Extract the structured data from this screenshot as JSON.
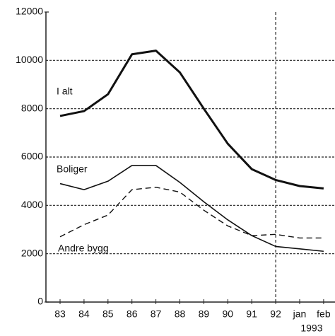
{
  "chart_data": {
    "type": "line",
    "categories": [
      "83",
      "84",
      "85",
      "86",
      "87",
      "88",
      "89",
      "90",
      "91",
      "92",
      "jan",
      "feb"
    ],
    "x_group_label": "1993",
    "vline_category": "92",
    "series": [
      {
        "name": "I alt",
        "color": "#111111",
        "width": 3,
        "dashed": false,
        "values": [
          7700,
          7900,
          8600,
          10250,
          10400,
          9500,
          8000,
          6550,
          5500,
          5050,
          4800,
          4700
        ]
      },
      {
        "name": "Boliger",
        "color": "#111111",
        "width": 1.6,
        "dashed": false,
        "values": [
          4900,
          4650,
          5000,
          5650,
          5650,
          4950,
          4150,
          3400,
          2750,
          2300,
          2200,
          2100
        ]
      },
      {
        "name": "Andre bygg",
        "color": "#111111",
        "width": 1.4,
        "dashed": true,
        "values": [
          2700,
          3200,
          3600,
          4650,
          4750,
          4550,
          3800,
          3150,
          2750,
          2800,
          2650,
          2650
        ]
      }
    ],
    "ylim": [
      0,
      12000
    ],
    "yticks": [
      0,
      2000,
      4000,
      6000,
      8000,
      10000,
      12000
    ],
    "grid": true
  }
}
